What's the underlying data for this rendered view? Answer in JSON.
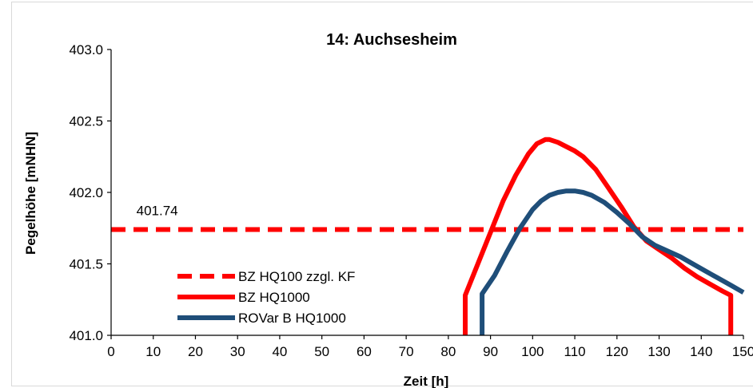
{
  "chart_data": {
    "type": "line",
    "title": "14: Auchsesheim",
    "xlabel": "Zeit [h]",
    "ylabel": "Pegelhöhe [mNHN]",
    "xlim": [
      0,
      150
    ],
    "ylim": [
      401.0,
      403.0
    ],
    "xticks": [
      0,
      10,
      20,
      30,
      40,
      50,
      60,
      70,
      80,
      90,
      100,
      110,
      120,
      130,
      140,
      150
    ],
    "xtick_labels": [
      "0",
      "10",
      "20",
      "30",
      "40",
      "50",
      "60",
      "70",
      "80",
      "90",
      "100",
      "110",
      "120",
      "130",
      "140",
      "150"
    ],
    "yticks": [
      401.0,
      401.5,
      402.0,
      402.5,
      403.0
    ],
    "ytick_labels": [
      "401.0",
      "401.5",
      "402.0",
      "402.5",
      "403.0"
    ],
    "grid": "none",
    "legend_position": "bottom-left",
    "annotations": [
      {
        "text": "401.74",
        "x": 6,
        "y": 401.84
      }
    ],
    "series": [
      {
        "name": "BZ HQ100 zzgl. KF",
        "color": "#ff0000",
        "style": "dashed",
        "x": [
          0,
          150
        ],
        "y": [
          401.74,
          401.74
        ]
      },
      {
        "name": "BZ HQ1000",
        "color": "#ff0000",
        "style": "solid",
        "x": [
          84,
          84,
          87,
          90,
          93,
          96,
          99,
          101,
          103,
          104,
          106,
          108,
          110,
          112,
          115,
          118,
          121,
          124,
          127,
          130,
          133,
          136,
          139,
          142,
          145,
          147,
          147
        ],
        "y": [
          401.0,
          401.28,
          401.5,
          401.72,
          401.94,
          402.12,
          402.27,
          402.34,
          402.37,
          402.37,
          402.35,
          402.32,
          402.29,
          402.25,
          402.16,
          402.03,
          401.9,
          401.76,
          401.66,
          401.6,
          401.54,
          401.47,
          401.41,
          401.36,
          401.31,
          401.28,
          401.0
        ]
      },
      {
        "name": "ROVar B HQ1000",
        "color": "#1f4e79",
        "style": "solid",
        "x": [
          88,
          88,
          91,
          94,
          97,
          100,
          102,
          104,
          106,
          108,
          110,
          112,
          114,
          117,
          120,
          123,
          126,
          129,
          132,
          135,
          138,
          141,
          144,
          147,
          150
        ],
        "y": [
          401.0,
          401.29,
          401.42,
          401.59,
          401.75,
          401.88,
          401.94,
          401.98,
          402.0,
          402.01,
          402.01,
          402.0,
          401.98,
          401.93,
          401.86,
          401.78,
          401.69,
          401.63,
          401.59,
          401.55,
          401.5,
          401.45,
          401.4,
          401.35,
          401.3
        ]
      }
    ]
  }
}
